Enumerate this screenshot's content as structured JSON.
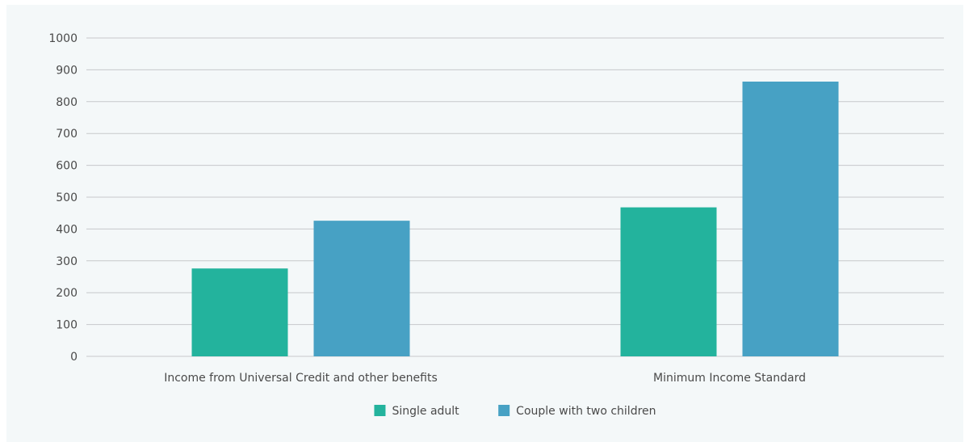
{
  "chart_data": {
    "type": "bar",
    "categories": [
      "Income from Universal Credit and other benefits",
      "Minimum Income Standard"
    ],
    "series": [
      {
        "name": "Single adult",
        "values": [
          276,
          468
        ],
        "color": "#23b39d"
      },
      {
        "name": "Couple with two children",
        "values": [
          426,
          863
        ],
        "color": "#47a1c4"
      }
    ],
    "ylim": [
      0,
      1000
    ],
    "yticks": [
      0,
      100,
      200,
      300,
      400,
      500,
      600,
      700,
      800,
      900,
      1000
    ],
    "grid": true,
    "legend_position": "bottom-center",
    "title": "",
    "xlabel": "",
    "ylabel": ""
  }
}
